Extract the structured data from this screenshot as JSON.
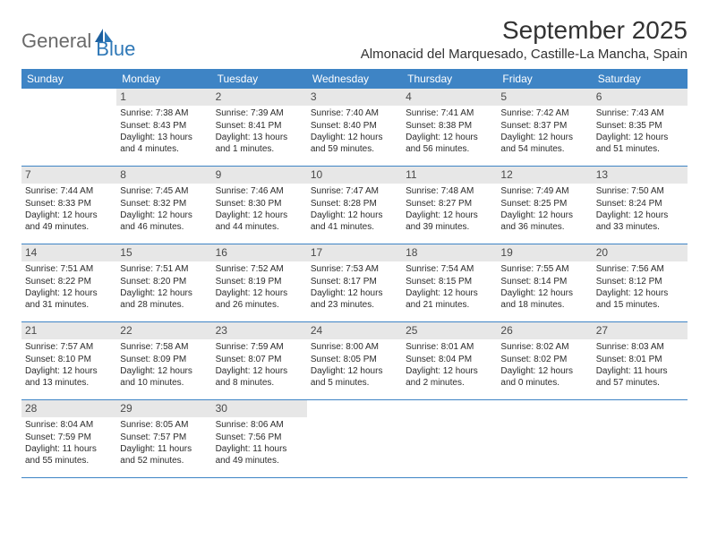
{
  "brand": {
    "part1": "General",
    "part2": "Blue"
  },
  "title": "September 2025",
  "location": "Almonacid del Marquesado, Castille-La Mancha, Spain",
  "colors": {
    "header_bg": "#3e84c5",
    "header_text": "#ffffff",
    "daynum_bg": "#e7e7e7",
    "daynum_text": "#4a4a4a",
    "body_text": "#2b2b2b",
    "rule": "#3e84c5",
    "logo_gray": "#6a6a6a",
    "logo_blue": "#2f78b7"
  },
  "dow": [
    "Sunday",
    "Monday",
    "Tuesday",
    "Wednesday",
    "Thursday",
    "Friday",
    "Saturday"
  ],
  "weeks": [
    [
      {
        "n": "",
        "sr": "",
        "ss": "",
        "dl": ""
      },
      {
        "n": "1",
        "sr": "Sunrise: 7:38 AM",
        "ss": "Sunset: 8:43 PM",
        "dl": "Daylight: 13 hours and 4 minutes."
      },
      {
        "n": "2",
        "sr": "Sunrise: 7:39 AM",
        "ss": "Sunset: 8:41 PM",
        "dl": "Daylight: 13 hours and 1 minutes."
      },
      {
        "n": "3",
        "sr": "Sunrise: 7:40 AM",
        "ss": "Sunset: 8:40 PM",
        "dl": "Daylight: 12 hours and 59 minutes."
      },
      {
        "n": "4",
        "sr": "Sunrise: 7:41 AM",
        "ss": "Sunset: 8:38 PM",
        "dl": "Daylight: 12 hours and 56 minutes."
      },
      {
        "n": "5",
        "sr": "Sunrise: 7:42 AM",
        "ss": "Sunset: 8:37 PM",
        "dl": "Daylight: 12 hours and 54 minutes."
      },
      {
        "n": "6",
        "sr": "Sunrise: 7:43 AM",
        "ss": "Sunset: 8:35 PM",
        "dl": "Daylight: 12 hours and 51 minutes."
      }
    ],
    [
      {
        "n": "7",
        "sr": "Sunrise: 7:44 AM",
        "ss": "Sunset: 8:33 PM",
        "dl": "Daylight: 12 hours and 49 minutes."
      },
      {
        "n": "8",
        "sr": "Sunrise: 7:45 AM",
        "ss": "Sunset: 8:32 PM",
        "dl": "Daylight: 12 hours and 46 minutes."
      },
      {
        "n": "9",
        "sr": "Sunrise: 7:46 AM",
        "ss": "Sunset: 8:30 PM",
        "dl": "Daylight: 12 hours and 44 minutes."
      },
      {
        "n": "10",
        "sr": "Sunrise: 7:47 AM",
        "ss": "Sunset: 8:28 PM",
        "dl": "Daylight: 12 hours and 41 minutes."
      },
      {
        "n": "11",
        "sr": "Sunrise: 7:48 AM",
        "ss": "Sunset: 8:27 PM",
        "dl": "Daylight: 12 hours and 39 minutes."
      },
      {
        "n": "12",
        "sr": "Sunrise: 7:49 AM",
        "ss": "Sunset: 8:25 PM",
        "dl": "Daylight: 12 hours and 36 minutes."
      },
      {
        "n": "13",
        "sr": "Sunrise: 7:50 AM",
        "ss": "Sunset: 8:24 PM",
        "dl": "Daylight: 12 hours and 33 minutes."
      }
    ],
    [
      {
        "n": "14",
        "sr": "Sunrise: 7:51 AM",
        "ss": "Sunset: 8:22 PM",
        "dl": "Daylight: 12 hours and 31 minutes."
      },
      {
        "n": "15",
        "sr": "Sunrise: 7:51 AM",
        "ss": "Sunset: 8:20 PM",
        "dl": "Daylight: 12 hours and 28 minutes."
      },
      {
        "n": "16",
        "sr": "Sunrise: 7:52 AM",
        "ss": "Sunset: 8:19 PM",
        "dl": "Daylight: 12 hours and 26 minutes."
      },
      {
        "n": "17",
        "sr": "Sunrise: 7:53 AM",
        "ss": "Sunset: 8:17 PM",
        "dl": "Daylight: 12 hours and 23 minutes."
      },
      {
        "n": "18",
        "sr": "Sunrise: 7:54 AM",
        "ss": "Sunset: 8:15 PM",
        "dl": "Daylight: 12 hours and 21 minutes."
      },
      {
        "n": "19",
        "sr": "Sunrise: 7:55 AM",
        "ss": "Sunset: 8:14 PM",
        "dl": "Daylight: 12 hours and 18 minutes."
      },
      {
        "n": "20",
        "sr": "Sunrise: 7:56 AM",
        "ss": "Sunset: 8:12 PM",
        "dl": "Daylight: 12 hours and 15 minutes."
      }
    ],
    [
      {
        "n": "21",
        "sr": "Sunrise: 7:57 AM",
        "ss": "Sunset: 8:10 PM",
        "dl": "Daylight: 12 hours and 13 minutes."
      },
      {
        "n": "22",
        "sr": "Sunrise: 7:58 AM",
        "ss": "Sunset: 8:09 PM",
        "dl": "Daylight: 12 hours and 10 minutes."
      },
      {
        "n": "23",
        "sr": "Sunrise: 7:59 AM",
        "ss": "Sunset: 8:07 PM",
        "dl": "Daylight: 12 hours and 8 minutes."
      },
      {
        "n": "24",
        "sr": "Sunrise: 8:00 AM",
        "ss": "Sunset: 8:05 PM",
        "dl": "Daylight: 12 hours and 5 minutes."
      },
      {
        "n": "25",
        "sr": "Sunrise: 8:01 AM",
        "ss": "Sunset: 8:04 PM",
        "dl": "Daylight: 12 hours and 2 minutes."
      },
      {
        "n": "26",
        "sr": "Sunrise: 8:02 AM",
        "ss": "Sunset: 8:02 PM",
        "dl": "Daylight: 12 hours and 0 minutes."
      },
      {
        "n": "27",
        "sr": "Sunrise: 8:03 AM",
        "ss": "Sunset: 8:01 PM",
        "dl": "Daylight: 11 hours and 57 minutes."
      }
    ],
    [
      {
        "n": "28",
        "sr": "Sunrise: 8:04 AM",
        "ss": "Sunset: 7:59 PM",
        "dl": "Daylight: 11 hours and 55 minutes."
      },
      {
        "n": "29",
        "sr": "Sunrise: 8:05 AM",
        "ss": "Sunset: 7:57 PM",
        "dl": "Daylight: 11 hours and 52 minutes."
      },
      {
        "n": "30",
        "sr": "Sunrise: 8:06 AM",
        "ss": "Sunset: 7:56 PM",
        "dl": "Daylight: 11 hours and 49 minutes."
      },
      {
        "n": "",
        "sr": "",
        "ss": "",
        "dl": ""
      },
      {
        "n": "",
        "sr": "",
        "ss": "",
        "dl": ""
      },
      {
        "n": "",
        "sr": "",
        "ss": "",
        "dl": ""
      },
      {
        "n": "",
        "sr": "",
        "ss": "",
        "dl": ""
      }
    ]
  ]
}
